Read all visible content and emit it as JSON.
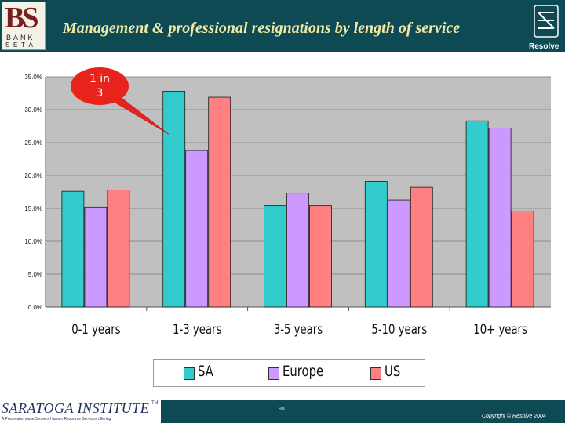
{
  "header": {
    "title": "Management & professional resignations by length of service",
    "logo_text_main": "BS",
    "logo_text_bank": "BANK",
    "logo_text_seta": "S·E·T·A",
    "resolve_label": "Resolve"
  },
  "chart_data": {
    "type": "bar",
    "title": "Management & professional resignations by length of service",
    "categories": [
      "0-1 years",
      "1-3 years",
      "3-5 years",
      "5-10 years",
      "10+ years"
    ],
    "series": [
      {
        "name": "SA",
        "color": "#33cccc",
        "values": [
          17.6,
          32.8,
          15.4,
          19.1,
          28.3
        ]
      },
      {
        "name": "Europe",
        "color": "#cc99ff",
        "values": [
          15.2,
          23.8,
          17.3,
          16.3,
          27.2
        ]
      },
      {
        "name": "US",
        "color": "#ff8080",
        "values": [
          17.8,
          31.9,
          15.4,
          18.2,
          14.6
        ]
      }
    ],
    "yticks": [
      "0.0%",
      "5.0%",
      "10.0%",
      "15.0%",
      "20.0%",
      "25.0%",
      "30.0%",
      "35.0%"
    ],
    "ylim": [
      0,
      35
    ],
    "grid": true,
    "legend_position": "bottom",
    "xlabel": "",
    "ylabel": "",
    "annotation": {
      "line1": "1 in",
      "line2": "3",
      "color": "#e8231c"
    }
  },
  "footer": {
    "logo": "SARATOGA INSTITUTE",
    "logo_tm": "TM",
    "logo_subtitle": "A PricewaterhouseCoopers Human Resource Services offering",
    "page_number": "88",
    "copyright": "Copyright © Resolve 2004"
  }
}
